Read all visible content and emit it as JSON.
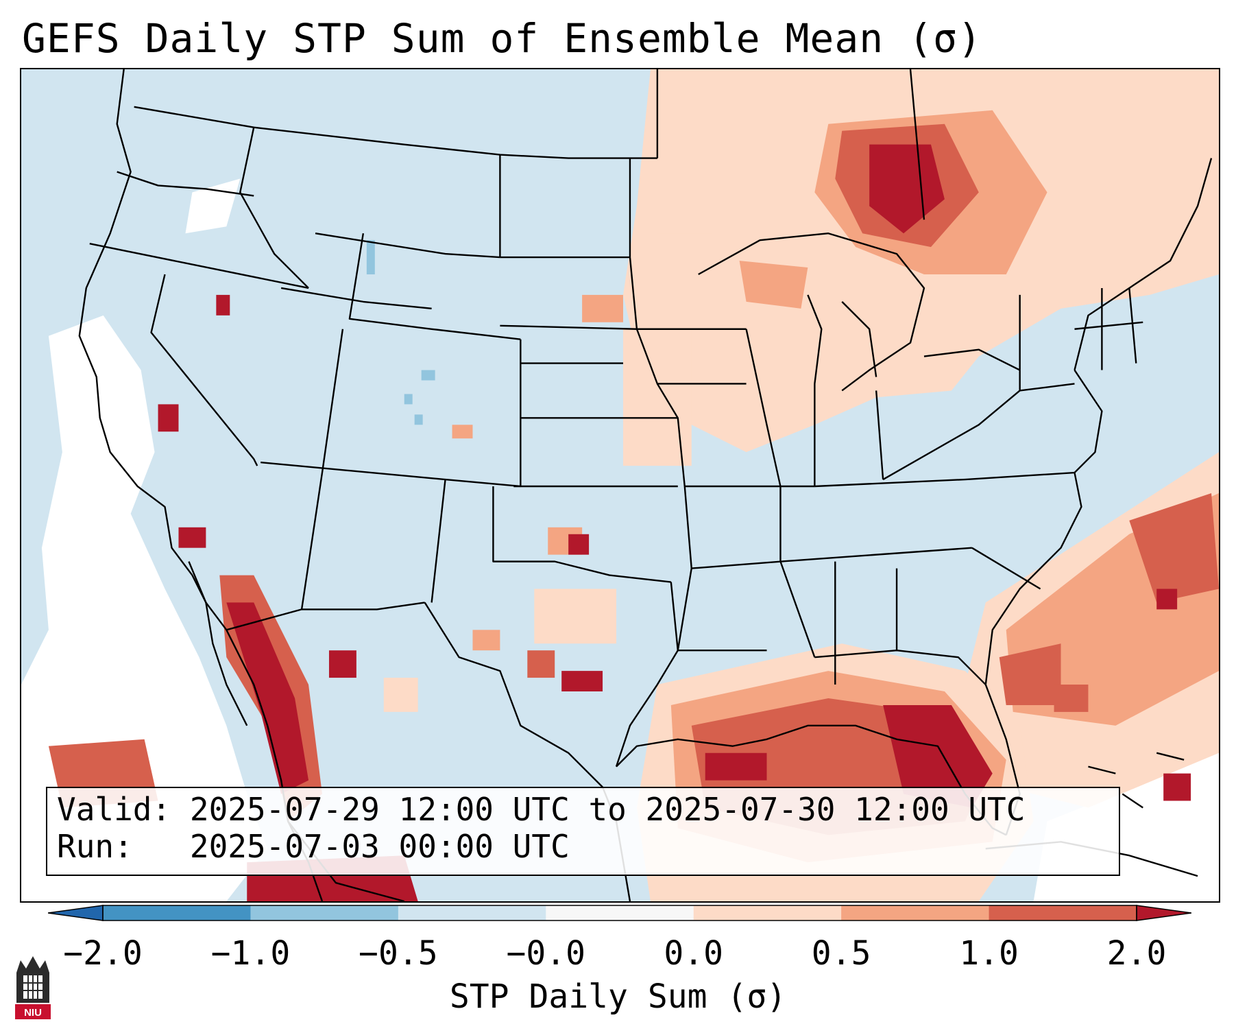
{
  "title": "GEFS Daily STP Sum of Ensemble Mean (σ)",
  "info": {
    "valid_label": "Valid:",
    "valid_value": "2025-07-29 12:00 UTC to 2025-07-30 12:00 UTC",
    "run_label": "Run:",
    "run_value": "2025-07-03 00:00 UTC"
  },
  "colorbar": {
    "title": "STP Daily Sum (σ)",
    "ticks": [
      "−2.0",
      "−1.0",
      "−0.5",
      "−0.0",
      "0.0",
      "0.5",
      "1.0",
      "2.0"
    ],
    "under_color": "#2166ac",
    "over_color": "#b2182b",
    "bins": [
      {
        "color": "#4393c3"
      },
      {
        "color": "#92c5de"
      },
      {
        "color": "#d1e5f0"
      },
      {
        "color": "#f7f7f7"
      },
      {
        "color": "#fddbc7"
      },
      {
        "color": "#f4a582"
      },
      {
        "color": "#d6604d"
      }
    ]
  },
  "map": {
    "background_color": "#d1e5f0",
    "no_anomaly_color": "#ffffff",
    "high_anomaly_color": "#b2182b",
    "medium_anomaly_color": "#d6604d",
    "low_anomaly_color": "#f4a582",
    "slight_anomaly_color": "#fddbc7"
  },
  "logo": {
    "text": "NIU"
  }
}
